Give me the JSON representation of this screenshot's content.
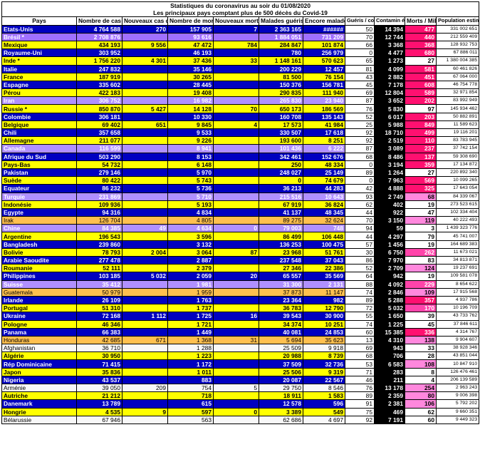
{
  "title": "Statistiques du coronavirus au soir du 01/08/2020",
  "subtitle": "Les principaux pays comptant plus de 500 décès du Covid-19",
  "columns": [
    "Pays",
    "Nombre de cas positifs",
    "Nouveaux cas du jour",
    "Nombre de morts",
    "Nouveaux morts du jour",
    "Malades guéris",
    "Encore malades",
    "Guéris / contami",
    "Contamin és/Millio",
    "Morts / Million",
    "Population estimée"
  ],
  "rows": [
    {
      "style": "b",
      "m": "m1",
      "cells": [
        "Etats-Unis",
        "4 764 588",
        "270",
        "157 905",
        "7",
        "2 363 165",
        "######",
        "50",
        "14 394",
        "477",
        "331 002 651"
      ]
    },
    {
      "style": "v",
      "m": "m1",
      "cells": [
        "Brésil *",
        "2 708 876",
        "",
        "93 616",
        "",
        "1 884 051",
        "731 209",
        "70",
        "12 744",
        "440",
        "212 559 409"
      ]
    },
    {
      "style": "y",
      "m": "m1",
      "cells": [
        "Mexique",
        "434 193",
        "9 556",
        "47 472",
        "784",
        "284 847",
        "101 874",
        "66",
        "3 368",
        "368",
        "128 932 753"
      ]
    },
    {
      "style": "b",
      "m": "m1",
      "cells": [
        "Royaume-Uni",
        "303 952",
        "",
        "46 193",
        "",
        "780",
        "256 979",
        "0",
        "4 477",
        "680",
        "67 886 011"
      ]
    },
    {
      "style": "y",
      "m": "m5",
      "cells": [
        "Inde *",
        "1 756 220",
        "4 301",
        "37 436",
        "33",
        "1 148 161",
        "570 623",
        "65",
        "1 273",
        "27",
        "1 380 004 385"
      ]
    },
    {
      "style": "b",
      "m": "m1",
      "cells": [
        "Italie",
        "247 832",
        "",
        "35 146",
        "",
        "200 229",
        "12 457",
        "81",
        "4 099",
        "581",
        "60 461 826"
      ]
    },
    {
      "style": "y",
      "m": "m1",
      "cells": [
        "France",
        "187 919",
        "",
        "30 265",
        "",
        "81 500",
        "76 154",
        "43",
        "2 882",
        "451",
        "67 064 000"
      ]
    },
    {
      "style": "b",
      "m": "m1",
      "cells": [
        "Espagne",
        "335 602",
        "",
        "28 445",
        "",
        "150 376",
        "156 781",
        "45",
        "7 178",
        "608",
        "46 754 778"
      ]
    },
    {
      "style": "y",
      "m": "m1",
      "cells": [
        "Pérou",
        "422 183",
        "",
        "19 408",
        "",
        "290 835",
        "111 940",
        "69",
        "12 804",
        "589",
        "32 971 854"
      ]
    },
    {
      "style": "p",
      "m": "m1",
      "cells": [
        "Iran",
        "306 752",
        "",
        "16 982",
        "",
        "265 830",
        "23 940",
        "87",
        "3 652",
        "202",
        "83 992 949"
      ]
    },
    {
      "style": "y",
      "m": "m5",
      "cells": [
        "Russie *",
        "850 870",
        "5 427",
        "14 128",
        "70",
        "650 173",
        "186 569",
        "76",
        "5 830",
        "97",
        "145 934 462"
      ]
    },
    {
      "style": "b",
      "m": "m1",
      "cells": [
        "Colombie",
        "306 181",
        "",
        "10 330",
        "",
        "160 708",
        "135 143",
        "52",
        "6 017",
        "203",
        "50 882 891"
      ]
    },
    {
      "style": "y",
      "m": "m1",
      "cells": [
        "Belgique",
        "69 402",
        "651",
        "9 845",
        "4",
        "17 573",
        "41 984",
        "25",
        "5 988",
        "849",
        "11 589 623"
      ]
    },
    {
      "style": "b",
      "m": "m1",
      "cells": [
        "Chili",
        "357 658",
        "",
        "9 533",
        "",
        "330 507",
        "17 618",
        "92",
        "18 710",
        "499",
        "19 116 201"
      ]
    },
    {
      "style": "y",
      "m": "m1",
      "cells": [
        "Allemagne",
        "211 077",
        "",
        "9 226",
        "",
        "193 600",
        "8 251",
        "92",
        "2 519",
        "110",
        "83 783 945"
      ]
    },
    {
      "style": "p",
      "m": "m1",
      "cells": [
        "Canada",
        "116 599",
        "",
        "8 941",
        "",
        "101 436",
        "6 222",
        "87",
        "3 089",
        "237",
        "37 742 154"
      ]
    },
    {
      "style": "b",
      "m": "m1",
      "cells": [
        "Afrique du Sud",
        "503 290",
        "",
        "8 153",
        "",
        "342 461",
        "152 676",
        "68",
        "8 486",
        "137",
        "59 308 690"
      ]
    },
    {
      "style": "y",
      "m": "m1",
      "cells": [
        "Pays-Bas",
        "54 732",
        "",
        "6 148",
        "",
        "250",
        "48 334",
        "0",
        "3 194",
        "359",
        "17 134 872"
      ]
    },
    {
      "style": "b",
      "m": "m5",
      "cells": [
        "Pakistan",
        "279 146",
        "",
        "5 970",
        "",
        "248 027",
        "25 149",
        "89",
        "1 264",
        "27",
        "220 892 340"
      ]
    },
    {
      "style": "y",
      "m": "m1",
      "cells": [
        "Suède",
        "80 422",
        "",
        "5 743",
        "",
        "0",
        "74 679",
        "0",
        "7 963",
        "569",
        "10 099 265"
      ]
    },
    {
      "style": "b",
      "m": "m1",
      "cells": [
        "Equateur",
        "86 232",
        "",
        "5 736",
        "",
        "36 213",
        "44 283",
        "42",
        "4 888",
        "325",
        "17 643 054"
      ]
    },
    {
      "style": "p",
      "m": "m3",
      "cells": [
        "Turquie",
        "231 869",
        "",
        "5 710",
        "",
        "215 516",
        "10 643",
        "93",
        "2 749",
        "68",
        "84 339 067"
      ]
    },
    {
      "style": "y",
      "m": "m5",
      "cells": [
        "Indonésie",
        "109 936",
        "",
        "5 193",
        "",
        "67 919",
        "36 824",
        "62",
        "402",
        "19",
        "273 523 615"
      ]
    },
    {
      "style": "b",
      "m": "m5",
      "cells": [
        "Egypte",
        "94 316",
        "",
        "4 834",
        "",
        "41 137",
        "48 345",
        "44",
        "922",
        "47",
        "102 334 404"
      ]
    },
    {
      "style": "o",
      "m": "m3",
      "cells": [
        "Irak",
        "126 704",
        "",
        "4 805",
        "",
        "89 275",
        "32 624",
        "70",
        "3 150",
        "119",
        "40 222 493"
      ]
    },
    {
      "style": "p",
      "m": "m5",
      "cells": [
        "Chine",
        "84 385",
        "49",
        "4 634",
        "0",
        "79 003",
        "748",
        "94",
        "59",
        "3",
        "1 439 323 776"
      ]
    },
    {
      "style": "y",
      "m": "m5",
      "cells": [
        "Argentine",
        "196 543",
        "",
        "3 596",
        "",
        "86 499",
        "106 448",
        "44",
        "4 297",
        "79",
        "45 741 007"
      ]
    },
    {
      "style": "b",
      "m": "m5",
      "cells": [
        "Bangladesh",
        "239 860",
        "",
        "3 132",
        "",
        "136 253",
        "100 475",
        "57",
        "1 456",
        "19",
        "164 689 383"
      ]
    },
    {
      "style": "y",
      "m": "m2",
      "cells": [
        "Bolivie",
        "78 793",
        "2 004",
        "3 064",
        "87",
        "23 968",
        "51 761",
        "30",
        "6 750",
        "262",
        "11 673 021"
      ]
    },
    {
      "style": "b",
      "m": "m5",
      "cells": [
        "Arabie Saoudite",
        "277 478",
        "",
        "2 887",
        "",
        "237 548",
        "37 043",
        "86",
        "7 970",
        "83",
        "34 813 871"
      ]
    },
    {
      "style": "y",
      "m": "m3",
      "cells": [
        "Roumanie",
        "52 111",
        "",
        "2 379",
        "",
        "27 346",
        "22 386",
        "52",
        "2 709",
        "124",
        "19 237 691"
      ]
    },
    {
      "style": "b",
      "m": "m5",
      "cells": [
        "Philippines",
        "103 185",
        "5 032",
        "2 059",
        "20",
        "65 557",
        "35 569",
        "64",
        "942",
        "19",
        "109 581 078"
      ]
    },
    {
      "style": "p",
      "m": "m2",
      "cells": [
        "Suisse",
        "35 412",
        "",
        "1 981",
        "",
        "31 300",
        "2 131",
        "88",
        "4 092",
        "229",
        "8 654 622"
      ]
    },
    {
      "style": "o",
      "m": "m3",
      "cells": [
        "Guatemala",
        "50 979",
        "",
        "1 959",
        "",
        "37 873",
        "11 147",
        "74",
        "2 846",
        "109",
        "17 915 568"
      ]
    },
    {
      "style": "b",
      "m": "m1",
      "cells": [
        "Irlande",
        "26 109",
        "",
        "1 763",
        "",
        "23 364",
        "982",
        "89",
        "5 288",
        "357",
        "4 937 786"
      ]
    },
    {
      "style": "y",
      "m": "m2",
      "cells": [
        "Portugal",
        "51 310",
        "",
        "1 737",
        "",
        "36 783",
        "12 790",
        "72",
        "5 032",
        "170",
        "10 196 709"
      ]
    },
    {
      "style": "b",
      "m": "m5",
      "cells": [
        "Ukraine",
        "72 168",
        "1 112",
        "1 725",
        "16",
        "39 543",
        "30 900",
        "55",
        "1 650",
        "39",
        "43 733 762"
      ]
    },
    {
      "style": "y",
      "m": "m5",
      "cells": [
        "Pologne",
        "46 346",
        "",
        "1 721",
        "",
        "34 374",
        "10 251",
        "74",
        "1 225",
        "45",
        "37 846 611"
      ]
    },
    {
      "style": "b",
      "m": "m1",
      "cells": [
        "Panama",
        "66 383",
        "",
        "1 449",
        "",
        "40 081",
        "24 853",
        "60",
        "15 385",
        "336",
        "4 314 767"
      ]
    },
    {
      "style": "o",
      "m": "m3",
      "cells": [
        "Honduras",
        "42 685",
        "671",
        "1 368",
        "31",
        "5 694",
        "35 623",
        "13",
        "4 310",
        "138",
        "9 904 607"
      ]
    },
    {
      "style": "l",
      "m": "m5",
      "cells": [
        "Afghanistan",
        "36 710",
        "",
        "1 288",
        "",
        "25 509",
        "9 918",
        "69",
        "943",
        "33",
        "38 928 346"
      ]
    },
    {
      "style": "y",
      "m": "m5",
      "cells": [
        "Algérie",
        "30 950",
        "",
        "1 223",
        "",
        "20 988",
        "8 739",
        "68",
        "706",
        "28",
        "43 851 044"
      ]
    },
    {
      "style": "b",
      "m": "m3",
      "cells": [
        "Rép Dominicaine",
        "71 415",
        "",
        "1 172",
        "",
        "37 509",
        "32 736",
        "53",
        "6 583",
        "108",
        "10 847 910"
      ]
    },
    {
      "style": "y",
      "m": "m5",
      "cells": [
        "Japon",
        "35 836",
        "",
        "1 011",
        "",
        "25 506",
        "9 319",
        "71",
        "283",
        "8",
        "126 476 461"
      ]
    },
    {
      "style": "b",
      "m": "m5",
      "cells": [
        "Nigeria",
        "43 537",
        "",
        "883",
        "",
        "20 087",
        "22 567",
        "46",
        "211",
        "4",
        "206 139 589"
      ]
    },
    {
      "style": "l",
      "m": "m3",
      "cells": [
        "Arménie",
        "39 050",
        "209",
        "754",
        "5",
        "29 750",
        "8 546",
        "76",
        "13 178",
        "254",
        "2 963 243"
      ]
    },
    {
      "style": "y",
      "m": "m3",
      "cells": [
        "Autriche",
        "21 212",
        "",
        "718",
        "",
        "18 911",
        "1 583",
        "89",
        "2 359",
        "80",
        "9 006 398"
      ]
    },
    {
      "style": "b",
      "m": "m3",
      "cells": [
        "Danemark",
        "13 789",
        "",
        "615",
        "",
        "12 578",
        "596",
        "91",
        "2 381",
        "106",
        "5 792 202"
      ]
    },
    {
      "style": "y",
      "m": "m5",
      "cells": [
        "Hongrie",
        "4 535",
        "9",
        "597",
        "0",
        "3 389",
        "549",
        "75",
        "469",
        "62",
        "9 660 351"
      ]
    },
    {
      "style": "l",
      "m": "m5",
      "cells": [
        "Bélarussie",
        "67 946",
        "",
        "563",
        "",
        "62 686",
        "4 697",
        "92",
        "7 191",
        "60",
        "9 449 323"
      ]
    }
  ]
}
